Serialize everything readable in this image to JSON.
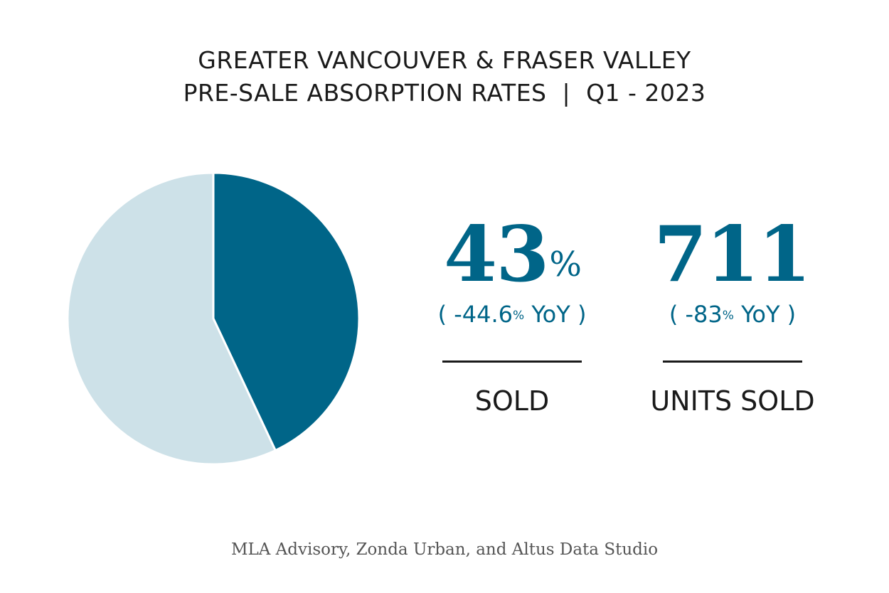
{
  "title": {
    "line1": "GREATER VANCOUVER & FRASER VALLEY",
    "line2": "PRE-SALE ABSORPTION RATES  |  Q1 - 2023"
  },
  "chart_data": {
    "type": "pie",
    "values": [
      43,
      57
    ],
    "colors": [
      "#006588",
      "#cde1e8"
    ],
    "start": "12 o'clock, clockwise",
    "legend": "none"
  },
  "stats": [
    {
      "number": "43",
      "unit": "%",
      "yoy_prefix": "( -44.6",
      "yoy_pct": "%",
      "yoy_suffix": " YoY )",
      "label": "SOLD"
    },
    {
      "number": "711",
      "unit": "",
      "yoy_prefix": "( -83",
      "yoy_pct": "%",
      "yoy_suffix": " YoY )",
      "label": "UNITS SOLD"
    }
  ],
  "source": "MLA Advisory, Zonda Urban, and Altus Data Studio",
  "colors": {
    "accent": "#006588",
    "light_accent": "#cde1e8",
    "text": "#1a1a1a",
    "source_text": "#555555"
  }
}
